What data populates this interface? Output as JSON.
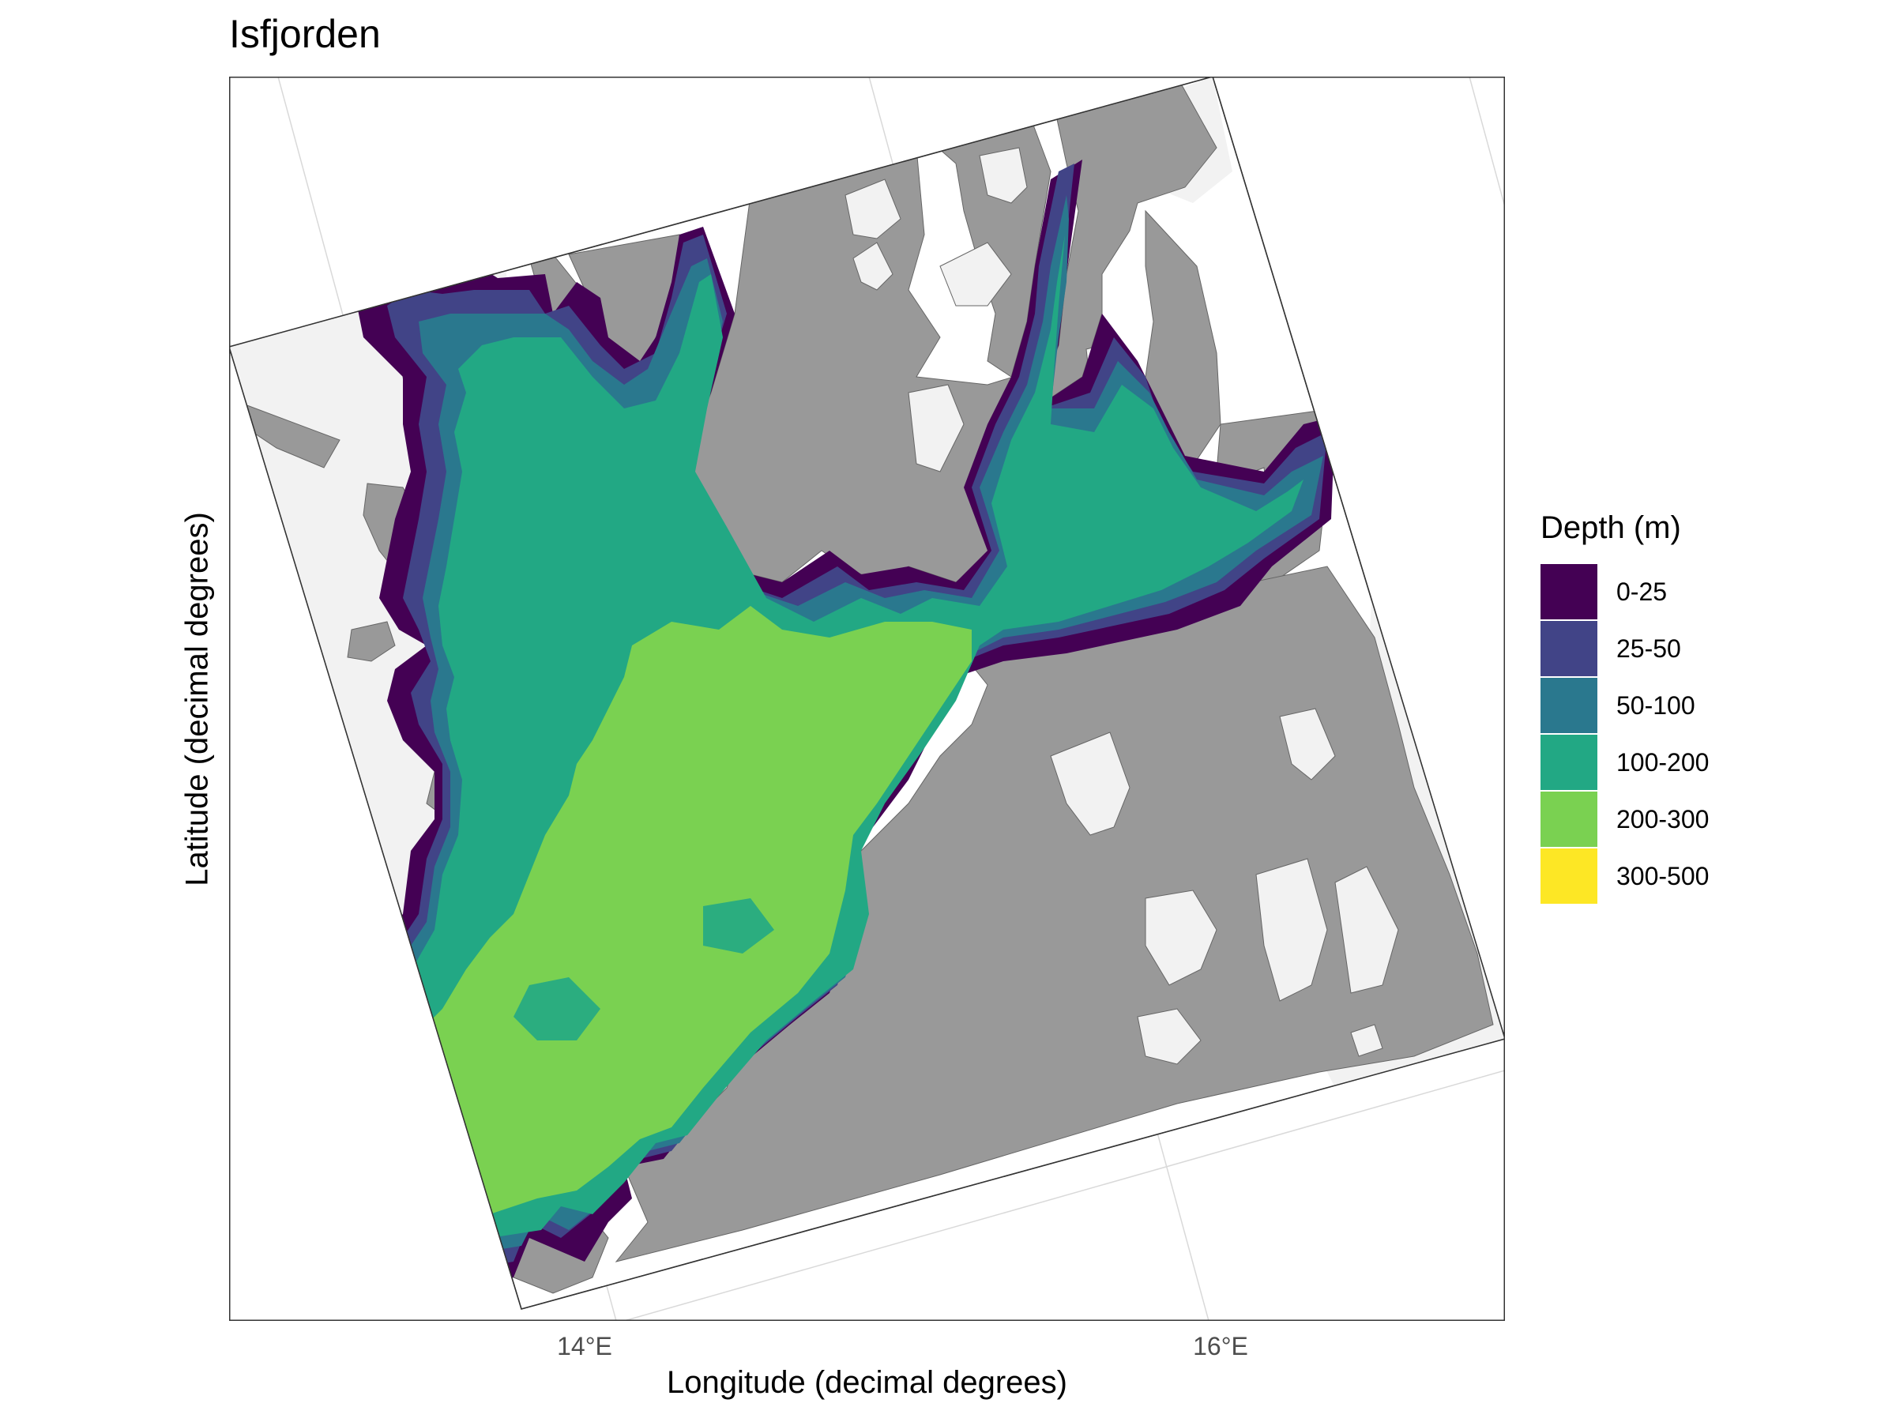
{
  "title": "Isfjorden",
  "axes": {
    "xlabel": "Longitude (decimal degrees)",
    "ylabel": "Latitude (decimal degrees)",
    "xticks": [
      "14°E",
      "16°E"
    ]
  },
  "legend": {
    "title": "Depth (m)",
    "items": [
      {
        "label": "0-25",
        "color": "#440154"
      },
      {
        "label": "25-50",
        "color": "#414487"
      },
      {
        "label": "50-100",
        "color": "#2A788E"
      },
      {
        "label": "100-200",
        "color": "#22A884"
      },
      {
        "label": "200-300",
        "color": "#7AD151"
      },
      {
        "label": "300-500",
        "color": "#FDE725"
      }
    ]
  },
  "colors": {
    "land": "#999999",
    "glacier": "#F2F2F2",
    "graticule": "#D9D9D9",
    "border": "#333333"
  }
}
